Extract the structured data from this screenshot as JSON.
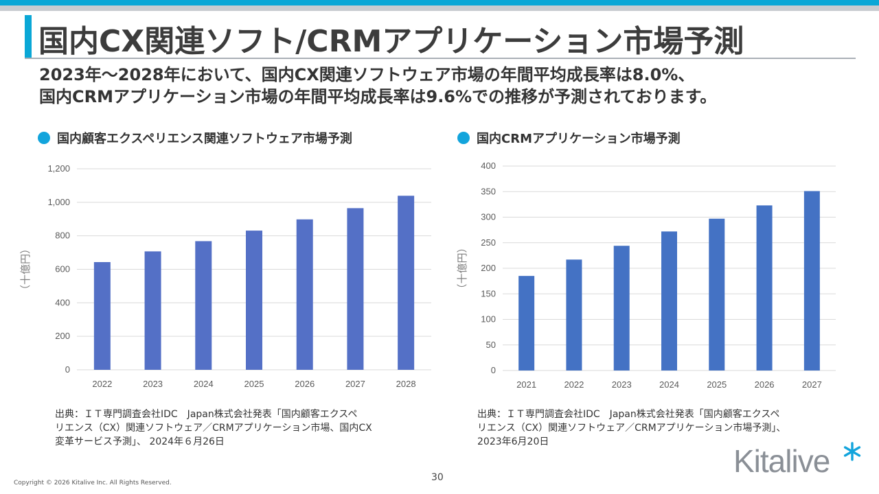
{
  "slide": {
    "title": "国内CX関連ソフト/CRMアプリケーション市場予測",
    "subtitle_line1": "2023年～2028年において、国内CX関連ソフトウェア市場の年間平均成長率は8.0%、",
    "subtitle_line2": "国内CRMアプリケーション市場の年間平均成長率は9.6%での推移が予測されております。",
    "page_number": "30",
    "copyright": "Copyright © 2026 Kitalive Inc. All Rights Reserved.",
    "logo_text": "Kitalive"
  },
  "colors": {
    "accent": "#0aa7d6",
    "bar_left": "#5470c6",
    "bar_right": "#4472c4",
    "grid": "#d9d9d9"
  },
  "left_chart": {
    "heading": "国内顧客エクスペリエンス関連ソフトウェア市場予測",
    "source_line1": "出典：ＩＴ専門調査会社IDC　Japan株式会社発表「国内顧客エクスペ",
    "source_line2": "リエンス（CX）関連ソフトウェア／CRMアプリケーション市場、国内CX",
    "source_line3": "変革サービス予測」、 2024年６月26日"
  },
  "right_chart": {
    "heading": "国内CRMアプリケーション市場予測",
    "source_line1": "出典：ＩＴ専門調査会社IDC　Japan株式会社発表「国内顧客エクスペ",
    "source_line2": "リエンス（CX）関連ソフトウェア／CRMアプリケーション市場予測」、",
    "source_line3": "2023年6月20日"
  },
  "chart_data": [
    {
      "type": "bar",
      "title": "国内顧客エクスペリエンス関連ソフトウェア市場予測",
      "categories": [
        "2022",
        "2023",
        "2024",
        "2025",
        "2026",
        "2027",
        "2028"
      ],
      "values": [
        643,
        707,
        768,
        831,
        898,
        965,
        1039
      ],
      "xlabel": "",
      "ylabel": "（十億円）",
      "ylim": [
        0,
        1200
      ],
      "yticks": [
        0,
        200,
        400,
        600,
        800,
        1000,
        1200
      ],
      "ytick_labels": [
        "0",
        "200",
        "400",
        "600",
        "800",
        "1,000",
        "1,200"
      ],
      "grid": true
    },
    {
      "type": "bar",
      "title": "国内CRMアプリケーション市場予測",
      "categories": [
        "2021",
        "2022",
        "2023",
        "2024",
        "2025",
        "2026",
        "2027"
      ],
      "values": [
        185,
        217,
        244,
        272,
        297,
        323,
        351
      ],
      "xlabel": "",
      "ylabel": "（十億円）",
      "ylim": [
        0,
        400
      ],
      "yticks": [
        0,
        50,
        100,
        150,
        200,
        250,
        300,
        350,
        400
      ],
      "ytick_labels": [
        "0",
        "50",
        "100",
        "150",
        "200",
        "250",
        "300",
        "350",
        "400"
      ],
      "grid": true
    }
  ]
}
